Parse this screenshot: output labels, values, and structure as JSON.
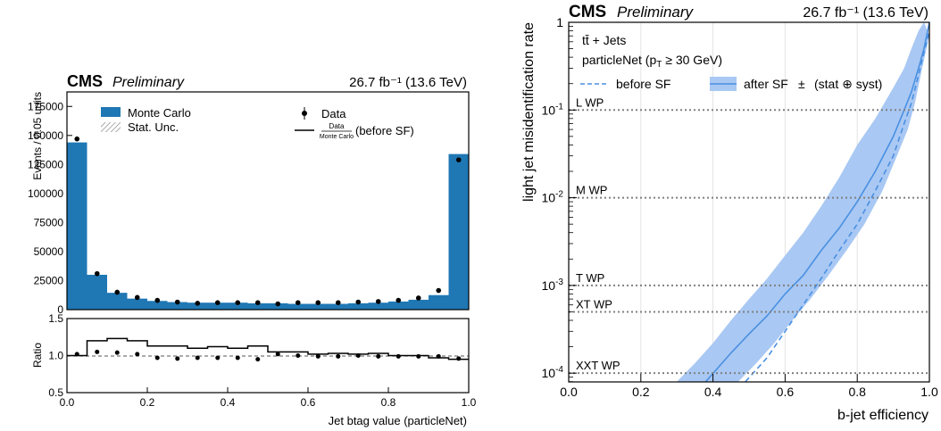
{
  "chart_data": [
    {
      "type": "bar",
      "panel": "left-top",
      "cms_label": "CMS",
      "cms_sublabel": "Preliminary",
      "lumi_label": "26.7 fb⁻¹ (13.6 TeV)",
      "xlabel": "",
      "ylabel": "Events / 0.05 units",
      "xlim": [
        0.0,
        1.0
      ],
      "ylim": [
        0,
        187500
      ],
      "yticks": [
        "0",
        "25000",
        "50000",
        "75000",
        "100000",
        "125000",
        "150000",
        "175000"
      ],
      "bin_edges": [
        0.0,
        0.05,
        0.1,
        0.15,
        0.2,
        0.25,
        0.3,
        0.35,
        0.4,
        0.45,
        0.5,
        0.55,
        0.6,
        0.65,
        0.7,
        0.75,
        0.8,
        0.85,
        0.9,
        0.95,
        1.0
      ],
      "series": [
        {
          "name": "Monte Carlo",
          "color": "#1f77b4",
          "values": [
            144000,
            30000,
            14500,
            9500,
            7500,
            6500,
            6000,
            6000,
            6000,
            5500,
            5500,
            5000,
            5000,
            5000,
            5500,
            6000,
            7000,
            8500,
            12500,
            134000
          ]
        },
        {
          "name": "Data",
          "values": [
            147000,
            31000,
            15000,
            10500,
            8000,
            6500,
            5500,
            6000,
            6000,
            6000,
            5000,
            6000,
            6000,
            6000,
            6500,
            7000,
            8000,
            10000,
            16500,
            129000
          ]
        }
      ],
      "legend": {
        "mc": "Monte Carlo",
        "stat": "Stat. Unc.",
        "data": "Data",
        "ratio_num": "Data",
        "ratio_den": "Monte Carlo",
        "ratio_suffix": "(before SF)"
      }
    },
    {
      "type": "line",
      "panel": "left-bottom",
      "xlabel": "Jet btag value (particleNet)",
      "ylabel": "Ratio",
      "xlim": [
        0.0,
        1.0
      ],
      "ylim": [
        0.5,
        1.5
      ],
      "xticks": [
        "0.0",
        "0.2",
        "0.4",
        "0.6",
        "0.8",
        "1.0"
      ],
      "yticks": [
        "0.5",
        "1.0",
        "1.5"
      ],
      "bin_edges": [
        0.0,
        0.05,
        0.1,
        0.15,
        0.2,
        0.25,
        0.3,
        0.35,
        0.4,
        0.45,
        0.5,
        0.55,
        0.6,
        0.65,
        0.7,
        0.75,
        0.8,
        0.85,
        0.9,
        0.95,
        1.0
      ],
      "series": [
        {
          "name": "Data / Monte Carlo (before SF)",
          "values": [
            1.0,
            1.2,
            1.23,
            1.2,
            1.13,
            1.13,
            1.1,
            1.12,
            1.1,
            1.13,
            1.05,
            1.05,
            1.02,
            1.03,
            1.02,
            1.03,
            1.0,
            1.0,
            0.97,
            0.95
          ]
        },
        {
          "name": "Data / MC",
          "values": [
            1.02,
            1.05,
            1.04,
            1.02,
            0.97,
            0.96,
            0.97,
            0.97,
            0.97,
            0.95,
            1.02,
            1.0,
            0.99,
            0.99,
            1.0,
            0.99,
            0.99,
            0.99,
            0.99,
            0.96
          ]
        }
      ]
    },
    {
      "type": "line",
      "panel": "right",
      "cms_label": "CMS",
      "cms_sublabel": "Preliminary",
      "lumi_label": "26.7 fb⁻¹ (13.6 TeV)",
      "process_label": "tt̄ + Jets",
      "selection_label": "particleNet (p",
      "selection_sub": "T",
      "selection_rest": " ≥ 30 GeV)",
      "xlabel": "b-jet efficiency",
      "ylabel": "light jet misidentification rate",
      "xlim": [
        0.0,
        1.0
      ],
      "ylim_log10": [
        -4.1,
        0
      ],
      "log_y": true,
      "xticks": [
        "0.0",
        "0.2",
        "0.4",
        "0.6",
        "0.8",
        "1.0"
      ],
      "ytick_exponents": [
        "0",
        "-1",
        "-2",
        "-3",
        "-4"
      ],
      "legend": {
        "before": "before SF",
        "after": "after SF",
        "pm": "±",
        "unc": "(stat ⊕ syst)"
      },
      "working_points": [
        {
          "name": "L WP",
          "value": 0.1
        },
        {
          "name": "M WP",
          "value": 0.01
        },
        {
          "name": "T WP",
          "value": 0.001
        },
        {
          "name": "XT WP",
          "value": 0.0005
        },
        {
          "name": "XXT WP",
          "value": 0.0001
        }
      ],
      "series": [
        {
          "name": "before SF",
          "style": "dashed",
          "color": "#4a90e2",
          "x": [
            0.49,
            0.55,
            0.6,
            0.65,
            0.7,
            0.75,
            0.8,
            0.85,
            0.9,
            0.93,
            0.95,
            0.97,
            0.985,
            1.0
          ],
          "y": [
            8e-05,
            0.00015,
            0.0003,
            0.0006,
            0.0012,
            0.0025,
            0.005,
            0.012,
            0.03,
            0.07,
            0.12,
            0.25,
            0.45,
            0.8
          ]
        },
        {
          "name": "after SF",
          "style": "solid",
          "color": "#4a90e2",
          "x": [
            0.38,
            0.45,
            0.5,
            0.55,
            0.6,
            0.65,
            0.7,
            0.75,
            0.8,
            0.85,
            0.9,
            0.93,
            0.95,
            0.97,
            0.985,
            1.0
          ],
          "y": [
            8e-05,
            0.00017,
            0.00028,
            0.00045,
            0.0008,
            0.0013,
            0.0025,
            0.0045,
            0.009,
            0.02,
            0.05,
            0.1,
            0.16,
            0.3,
            0.5,
            1.0
          ]
        },
        {
          "name": "after SF band low",
          "x": [
            0.47,
            0.52,
            0.57,
            0.62,
            0.67,
            0.72,
            0.77,
            0.82,
            0.87,
            0.91,
            0.94,
            0.96,
            0.98,
            1.0
          ],
          "y": [
            8e-05,
            0.00013,
            0.00022,
            0.0004,
            0.0007,
            0.0013,
            0.0025,
            0.005,
            0.012,
            0.03,
            0.06,
            0.12,
            0.3,
            0.7
          ]
        },
        {
          "name": "after SF band high",
          "x": [
            0.3,
            0.35,
            0.4,
            0.45,
            0.5,
            0.55,
            0.6,
            0.65,
            0.7,
            0.75,
            0.8,
            0.85,
            0.9,
            0.93,
            0.95,
            0.97,
            0.985
          ],
          "y": [
            8e-05,
            0.00013,
            0.00022,
            0.0004,
            0.0007,
            0.0012,
            0.0022,
            0.004,
            0.008,
            0.017,
            0.04,
            0.08,
            0.18,
            0.3,
            0.5,
            0.8,
            1.0
          ]
        }
      ]
    }
  ]
}
